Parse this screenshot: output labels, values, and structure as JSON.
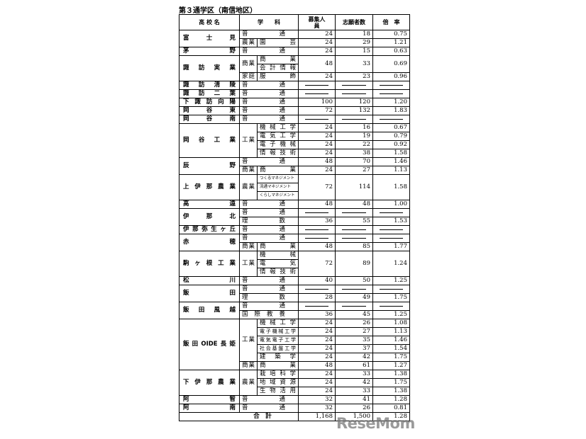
{
  "title": "第３通学区（南信地区）",
  "header": {
    "school": "高 校 名",
    "course": "学　　科",
    "recruit": "募集人員",
    "applicants": "志願者数",
    "ratio": "倍　率"
  },
  "schools": [
    {
      "name": "富士見",
      "groups": [
        {
          "division": "普通",
          "items": [
            {
              "recruit": "24",
              "applicants": "18",
              "ratio": "0.75"
            }
          ]
        },
        {
          "division": "農業",
          "items": [
            {
              "depts": [
                "園芸"
              ],
              "recruit": "24",
              "applicants": "29",
              "ratio": "1.21"
            }
          ]
        }
      ]
    },
    {
      "name": "茅野",
      "groups": [
        {
          "division": "普通",
          "items": [
            {
              "recruit": "24",
              "applicants": "15",
              "ratio": "0.63"
            }
          ]
        }
      ]
    },
    {
      "name": "諏訪実業",
      "groups": [
        {
          "division": "商業",
          "items": [
            {
              "depts": [
                "商業",
                "会計情報"
              ],
              "recruit": "48",
              "applicants": "33",
              "ratio": "0.69"
            }
          ]
        },
        {
          "division": "家庭",
          "items": [
            {
              "depts": [
                "服飾"
              ],
              "recruit": "24",
              "applicants": "23",
              "ratio": "0.96"
            }
          ]
        }
      ]
    },
    {
      "name": "諏訪清陵",
      "groups": [
        {
          "division": "普通",
          "items": [
            {
              "recruit": null,
              "applicants": null,
              "ratio": null
            }
          ]
        }
      ]
    },
    {
      "name": "諏訪二葉",
      "groups": [
        {
          "division": "普通",
          "items": [
            {
              "recruit": null,
              "applicants": null,
              "ratio": null
            }
          ]
        }
      ]
    },
    {
      "name": "下諏訪向陽",
      "groups": [
        {
          "division": "普通",
          "items": [
            {
              "recruit": "100",
              "applicants": "120",
              "ratio": "1.20"
            }
          ]
        }
      ]
    },
    {
      "name": "岡谷東",
      "groups": [
        {
          "division": "普通",
          "items": [
            {
              "recruit": "72",
              "applicants": "132",
              "ratio": "1.83"
            }
          ]
        }
      ]
    },
    {
      "name": "岡谷南",
      "groups": [
        {
          "division": "普通",
          "items": [
            {
              "recruit": null,
              "applicants": null,
              "ratio": null
            }
          ]
        }
      ]
    },
    {
      "name": "岡谷工業",
      "groups": [
        {
          "division": "工業",
          "items": [
            {
              "depts": [
                "機械工学"
              ],
              "recruit": "24",
              "applicants": "16",
              "ratio": "0.67"
            },
            {
              "depts": [
                "電気工学"
              ],
              "recruit": "24",
              "applicants": "19",
              "ratio": "0.79"
            },
            {
              "depts": [
                "電子機械"
              ],
              "recruit": "24",
              "applicants": "22",
              "ratio": "0.92"
            },
            {
              "depts": [
                "情報技術"
              ],
              "recruit": "24",
              "applicants": "38",
              "ratio": "1.58"
            }
          ]
        }
      ]
    },
    {
      "name": "辰野",
      "groups": [
        {
          "division": "普通",
          "items": [
            {
              "recruit": "48",
              "applicants": "70",
              "ratio": "1.46"
            }
          ]
        },
        {
          "division": "商業",
          "items": [
            {
              "depts": [
                "商業"
              ],
              "recruit": "24",
              "applicants": "27",
              "ratio": "1.13"
            }
          ]
        }
      ]
    },
    {
      "name": "上伊那農業",
      "groups": [
        {
          "division": "農業",
          "items": [
            {
              "depts": [
                "つくるマネジメント",
                "流通マネジメント",
                "くらしマネジメント"
              ],
              "recruit": "72",
              "applicants": "114",
              "ratio": "1.58"
            }
          ]
        }
      ]
    },
    {
      "name": "高遠",
      "groups": [
        {
          "division": "普通",
          "items": [
            {
              "recruit": "48",
              "applicants": "48",
              "ratio": "1.00"
            }
          ]
        }
      ]
    },
    {
      "name": "伊那北",
      "groups": [
        {
          "division": "普通",
          "items": [
            {
              "recruit": null,
              "applicants": null,
              "ratio": null
            }
          ]
        },
        {
          "division": "理数",
          "items": [
            {
              "recruit": "36",
              "applicants": "55",
              "ratio": "1.53"
            }
          ]
        }
      ]
    },
    {
      "name": "伊那弥生ヶ丘",
      "groups": [
        {
          "division": "普通",
          "items": [
            {
              "recruit": null,
              "applicants": null,
              "ratio": null
            }
          ]
        }
      ]
    },
    {
      "name": "赤穂",
      "groups": [
        {
          "division": "普通",
          "items": [
            {
              "recruit": null,
              "applicants": null,
              "ratio": null
            }
          ]
        },
        {
          "division": "商業",
          "items": [
            {
              "depts": [
                "商業"
              ],
              "recruit": "48",
              "applicants": "85",
              "ratio": "1.77"
            }
          ]
        }
      ]
    },
    {
      "name": "駒ヶ根工業",
      "groups": [
        {
          "division": "工業",
          "items": [
            {
              "depts": [
                "機械",
                "電気",
                "情報技術"
              ],
              "recruit": "72",
              "applicants": "89",
              "ratio": "1.24"
            }
          ]
        }
      ]
    },
    {
      "name": "松川",
      "groups": [
        {
          "division": "普通",
          "items": [
            {
              "recruit": "40",
              "applicants": "50",
              "ratio": "1.25"
            }
          ]
        }
      ]
    },
    {
      "name": "飯田",
      "groups": [
        {
          "division": "普通",
          "items": [
            {
              "recruit": null,
              "applicants": null,
              "ratio": null
            }
          ]
        },
        {
          "division": "理数",
          "items": [
            {
              "recruit": "28",
              "applicants": "49",
              "ratio": "1.75"
            }
          ]
        }
      ]
    },
    {
      "name": "飯田風越",
      "groups": [
        {
          "division": "普通",
          "items": [
            {
              "recruit": null,
              "applicants": null,
              "ratio": null
            }
          ]
        },
        {
          "division": "国際教養",
          "items": [
            {
              "recruit": "36",
              "applicants": "45",
              "ratio": "1.25"
            }
          ]
        }
      ]
    },
    {
      "name": "飯田OIDE長姫",
      "groups": [
        {
          "division": "工業",
          "items": [
            {
              "depts": [
                "機械工学"
              ],
              "recruit": "24",
              "applicants": "26",
              "ratio": "1.08"
            },
            {
              "depts": [
                "電子機械工学"
              ],
              "recruit": "24",
              "applicants": "27",
              "ratio": "1.13"
            },
            {
              "depts": [
                "電気電子工学"
              ],
              "recruit": "24",
              "applicants": "35",
              "ratio": "1.46"
            },
            {
              "depts": [
                "社会基盤工学"
              ],
              "recruit": "24",
              "applicants": "37",
              "ratio": "1.54"
            },
            {
              "depts": [
                "建築学"
              ],
              "recruit": "24",
              "applicants": "42",
              "ratio": "1.75"
            }
          ]
        },
        {
          "division": "商業",
          "items": [
            {
              "depts": [
                "商業"
              ],
              "recruit": "48",
              "applicants": "61",
              "ratio": "1.27"
            }
          ]
        }
      ]
    },
    {
      "name": "下伊那農業",
      "groups": [
        {
          "division": "農業",
          "items": [
            {
              "depts": [
                "栽培科学"
              ],
              "recruit": "24",
              "applicants": "33",
              "ratio": "1.38"
            },
            {
              "depts": [
                "地域資源"
              ],
              "recruit": "24",
              "applicants": "42",
              "ratio": "1.75"
            },
            {
              "depts": [
                "生物活用"
              ],
              "recruit": "24",
              "applicants": "33",
              "ratio": "1.38"
            }
          ]
        }
      ]
    },
    {
      "name": "阿智",
      "groups": [
        {
          "division": "普通",
          "items": [
            {
              "recruit": "32",
              "applicants": "41",
              "ratio": "1.28"
            }
          ]
        }
      ]
    },
    {
      "name": "阿南",
      "groups": [
        {
          "division": "普通",
          "items": [
            {
              "recruit": "32",
              "applicants": "26",
              "ratio": "0.81"
            }
          ]
        }
      ]
    }
  ],
  "total": {
    "label": "合　計",
    "recruit": "1,168",
    "applicants": "1,500",
    "ratio": "1.28"
  },
  "watermark": "ReseMom"
}
